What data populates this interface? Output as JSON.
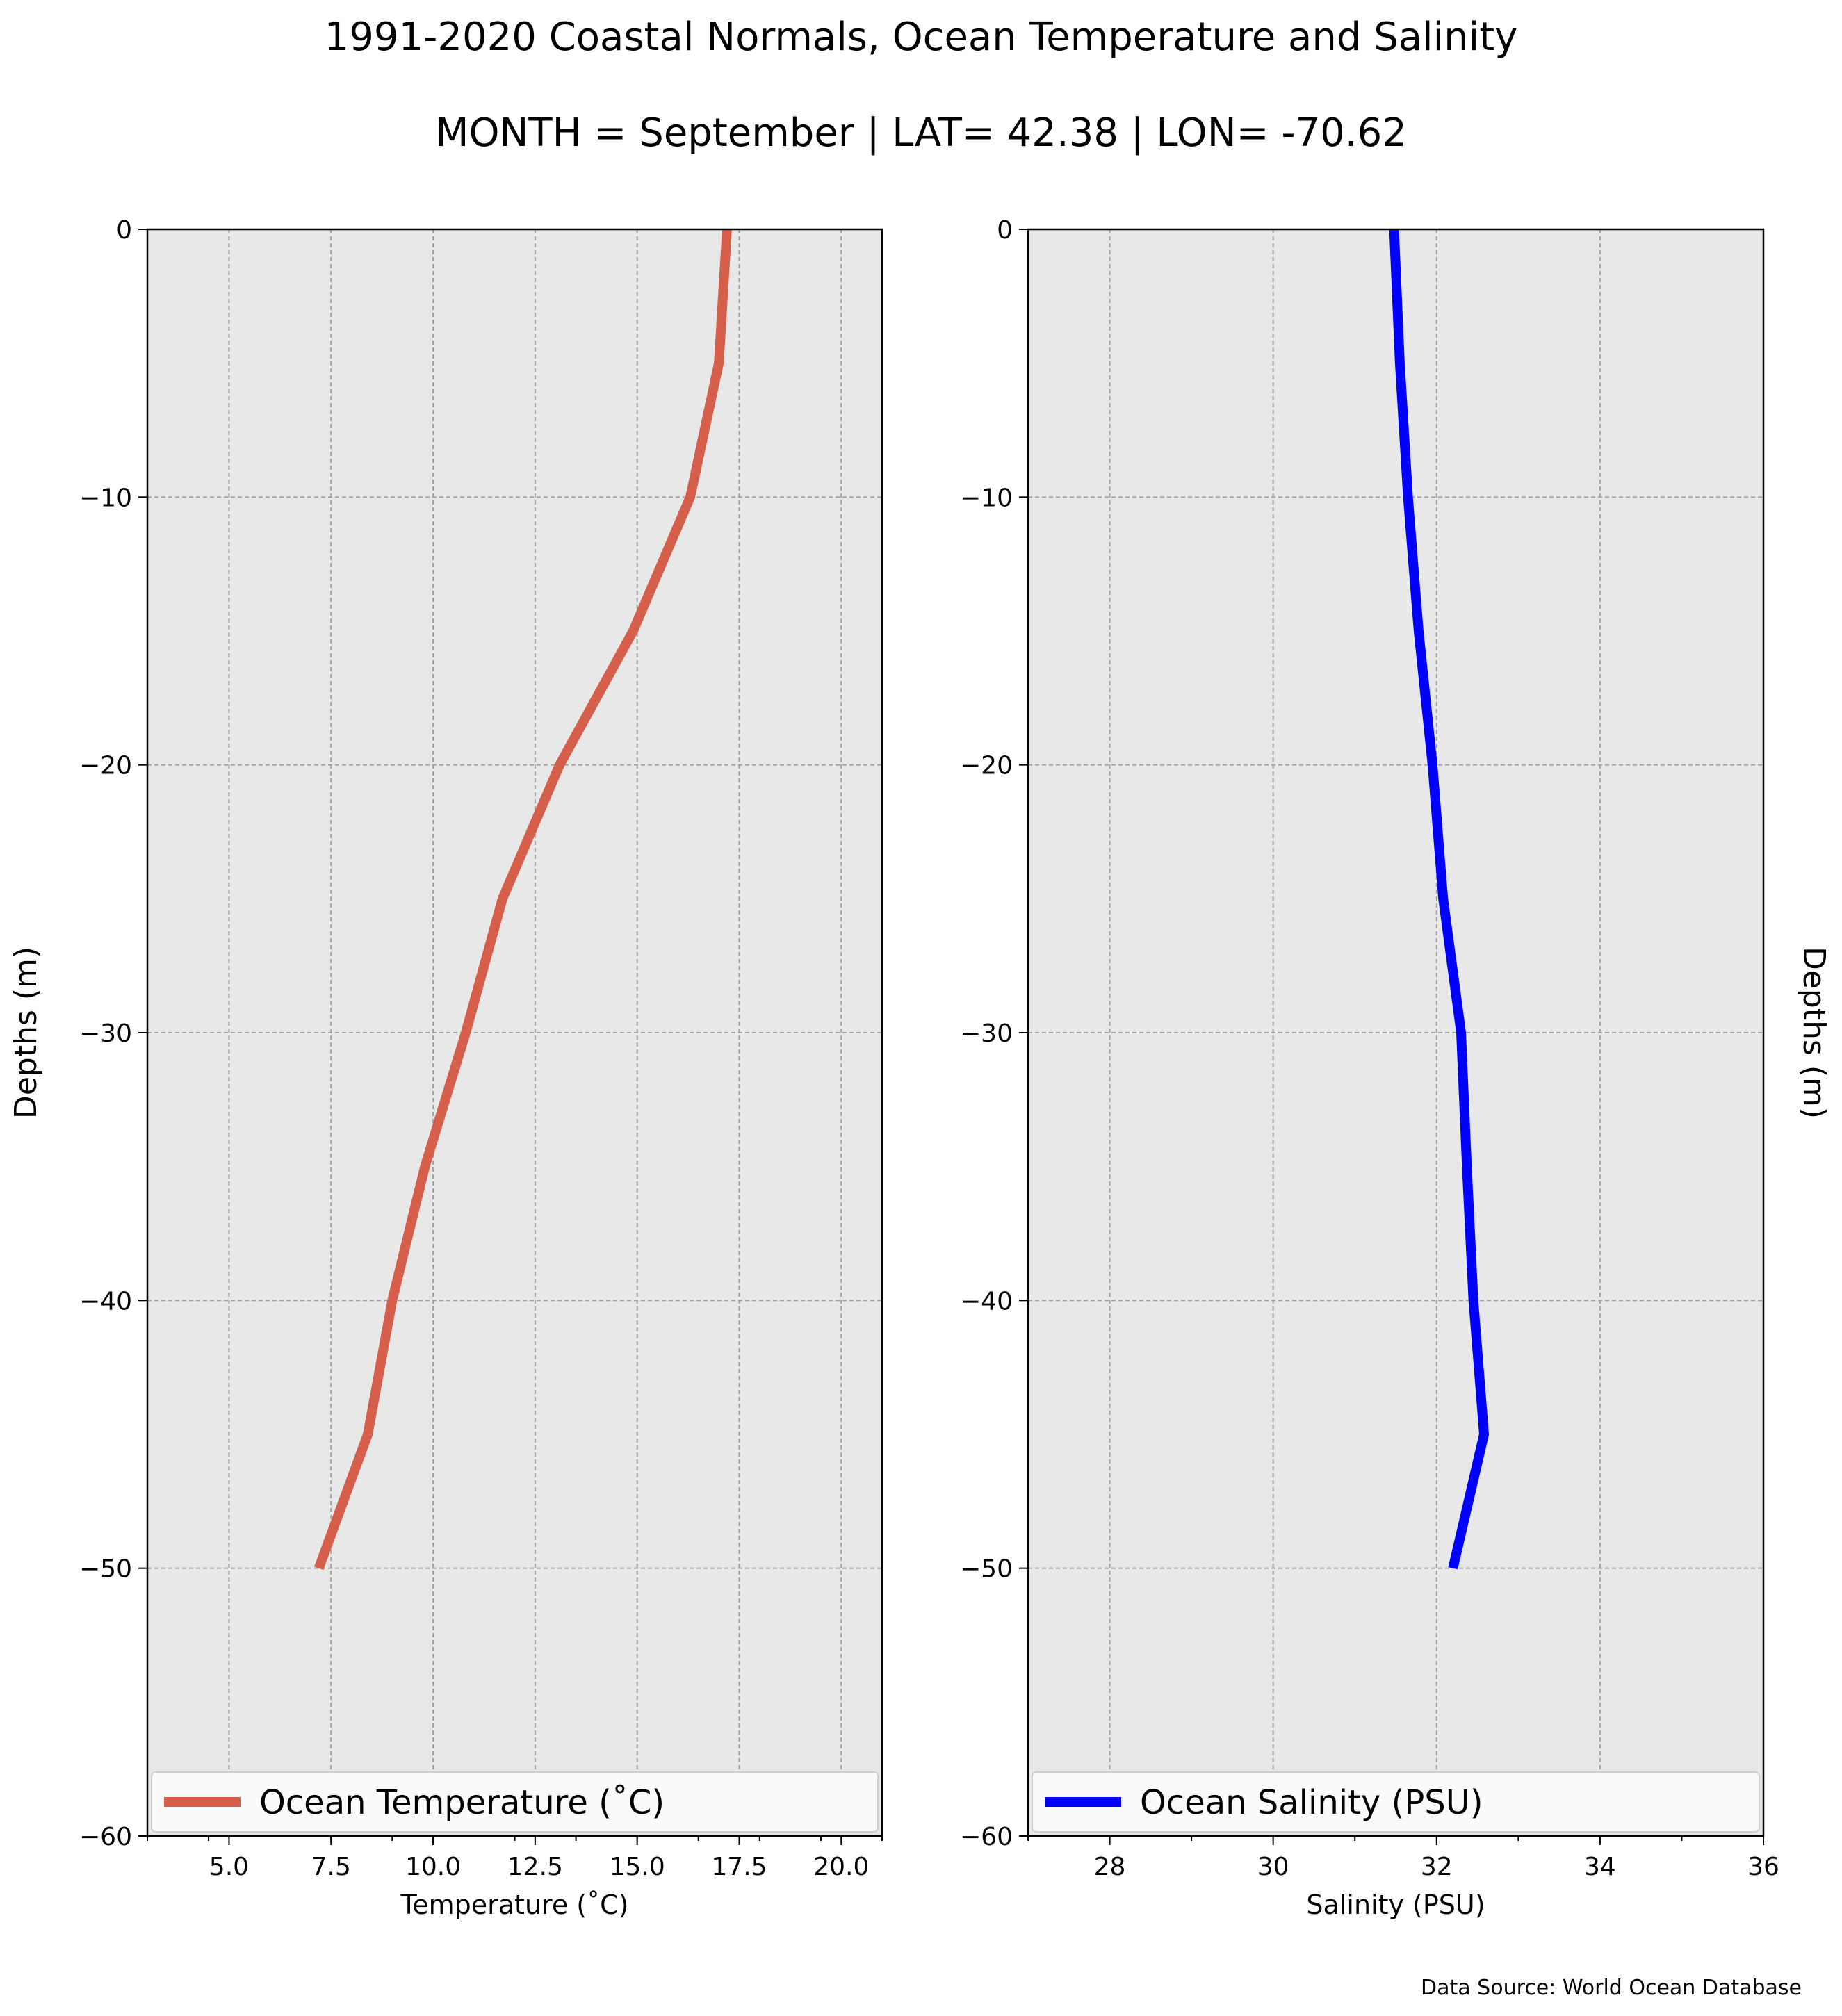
{
  "title": "1991-2020 Coastal Normals, Ocean Temperature and Salinity",
  "subtitle": "MONTH = September | LAT= 42.38 | LON= -70.62",
  "source": "Data Source: World Ocean Database",
  "chart_data": [
    {
      "type": "line",
      "series": [
        {
          "name": "Ocean Temperature ($^\\circ$C)",
          "display_name": "Ocean Temperature (˚C)",
          "color": "#d65f4b",
          "x": [
            17.2,
            17.0,
            16.3,
            14.9,
            13.1,
            11.7,
            10.8,
            9.8,
            9.0,
            8.4,
            7.2
          ],
          "y": [
            0,
            -5,
            -10,
            -15,
            -20,
            -25,
            -30,
            -35,
            -40,
            -45,
            -50
          ]
        }
      ],
      "xlabel": "Temperature (˚C)",
      "ylabel": "Depths (m)",
      "xlim": [
        3.0,
        21.0
      ],
      "ylim": [
        -60,
        0
      ],
      "xticks": [
        5.0,
        7.5,
        10.0,
        12.5,
        15.0,
        17.5,
        20.0
      ],
      "xtick_labels": [
        "5.0",
        "7.5",
        "10.0",
        "12.5",
        "15.0",
        "17.5",
        "20.0"
      ],
      "yticks": [
        0,
        -10,
        -20,
        -30,
        -40,
        -50,
        -60
      ],
      "ytick_labels": [
        "0",
        "−10",
        "−20",
        "−30",
        "−40",
        "−50",
        "−60"
      ],
      "grid": true,
      "legend": "lower-center",
      "background": "#e8e8e8"
    },
    {
      "type": "line",
      "series": [
        {
          "name": "Ocean Salinity (PSU)",
          "color": "#0000ff",
          "x": [
            31.48,
            31.55,
            31.65,
            31.78,
            31.95,
            32.08,
            32.3,
            32.37,
            32.45,
            32.58,
            32.2
          ],
          "y": [
            0,
            -5,
            -10,
            -15,
            -20,
            -25,
            -30,
            -35,
            -40,
            -45,
            -50
          ]
        }
      ],
      "xlabel": "Salinity (PSU)",
      "ylabel": "Depths (m)",
      "xlim": [
        27,
        36
      ],
      "ylim": [
        -60,
        0
      ],
      "xticks": [
        28,
        30,
        32,
        34,
        36
      ],
      "xtick_labels": [
        "28",
        "30",
        "32",
        "34",
        "36"
      ],
      "yticks": [
        0,
        -10,
        -20,
        -30,
        -40,
        -50,
        -60
      ],
      "ytick_labels": [
        "0",
        "−10",
        "−20",
        "−30",
        "−40",
        "−50",
        "−60"
      ],
      "grid": true,
      "legend": "lower-center",
      "background": "#e8e8e8"
    }
  ]
}
